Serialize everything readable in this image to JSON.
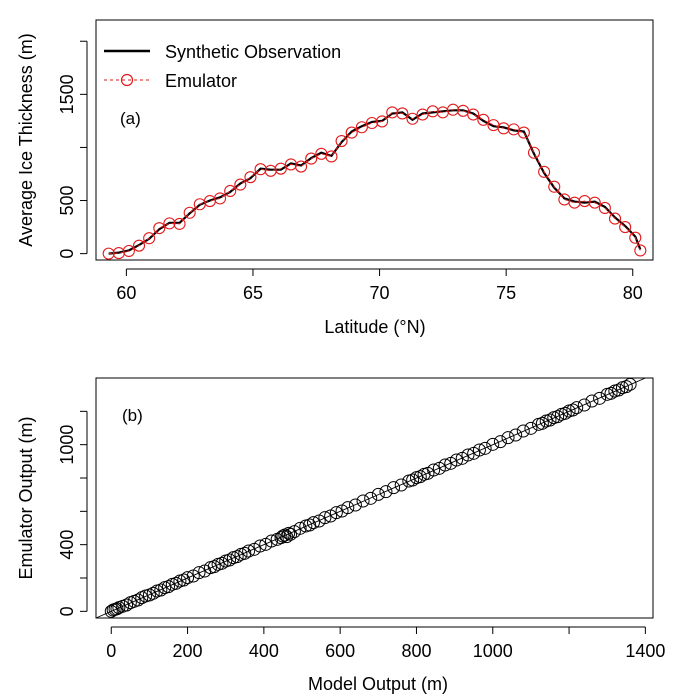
{
  "chart_data": [
    {
      "type": "line",
      "panel_label": "(a)",
      "xlabel": "Latitude (°N)",
      "ylabel": "Average Ice Thickness (m)",
      "xlim": [
        58.8,
        80.8
      ],
      "ylim": [
        -60,
        2200
      ],
      "xticks": [
        60,
        65,
        70,
        75,
        80
      ],
      "yticks": [
        0,
        500,
        1000,
        1500,
        2000
      ],
      "ytick_labels": [
        "0",
        "500",
        "",
        "1500",
        ""
      ],
      "grid": false,
      "legend_position": "top-left",
      "x": [
        59.3,
        59.7,
        60.1,
        60.5,
        60.9,
        61.3,
        61.7,
        62.1,
        62.5,
        62.9,
        63.3,
        63.7,
        64.1,
        64.5,
        64.9,
        65.3,
        65.7,
        66.1,
        66.5,
        66.9,
        67.3,
        67.7,
        68.1,
        68.5,
        68.9,
        69.3,
        69.7,
        70.1,
        70.5,
        70.9,
        71.3,
        71.7,
        72.1,
        72.5,
        72.9,
        73.3,
        73.7,
        74.1,
        74.5,
        74.9,
        75.3,
        75.7,
        76.1,
        76.5,
        76.9,
        77.3,
        77.7,
        78.1,
        78.5,
        78.9,
        79.3,
        79.7,
        80.1,
        80.3
      ],
      "series": [
        {
          "name": "Synthetic Observation",
          "color": "#000000",
          "style": "solid",
          "values": [
            0,
            10,
            30,
            80,
            140,
            230,
            290,
            290,
            380,
            460,
            500,
            530,
            580,
            660,
            710,
            800,
            790,
            790,
            850,
            830,
            900,
            950,
            920,
            1050,
            1150,
            1200,
            1240,
            1250,
            1320,
            1330,
            1260,
            1320,
            1330,
            1340,
            1350,
            1350,
            1320,
            1250,
            1200,
            1190,
            1160,
            1150,
            940,
            760,
            620,
            520,
            490,
            480,
            490,
            440,
            340,
            260,
            160,
            40
          ]
        },
        {
          "name": "Emulator",
          "color": "#e31a1c",
          "style": "dashed",
          "marker": "open-circle",
          "values": [
            0,
            5,
            25,
            75,
            145,
            240,
            285,
            280,
            385,
            465,
            495,
            520,
            590,
            650,
            720,
            795,
            780,
            800,
            840,
            820,
            895,
            940,
            915,
            1060,
            1140,
            1190,
            1230,
            1245,
            1330,
            1320,
            1270,
            1310,
            1340,
            1330,
            1355,
            1345,
            1310,
            1260,
            1210,
            1180,
            1170,
            1140,
            950,
            770,
            630,
            510,
            480,
            495,
            480,
            430,
            330,
            250,
            150,
            30
          ]
        }
      ]
    },
    {
      "type": "scatter",
      "panel_label": "(b)",
      "xlabel": "Model Output (m)",
      "ylabel": "Emulator Output (m)",
      "xlim": [
        -40,
        1420
      ],
      "ylim": [
        -40,
        1400
      ],
      "xticks": [
        0,
        200,
        400,
        600,
        800,
        1000,
        1200,
        1400
      ],
      "xtick_labels": [
        "0",
        "200",
        "400",
        "600",
        "800",
        "1000",
        "",
        "1400"
      ],
      "yticks": [
        0,
        200,
        400,
        600,
        800,
        1000,
        1200
      ],
      "ytick_labels": [
        "0",
        "",
        "400",
        "",
        "",
        "1000",
        ""
      ],
      "grid": false,
      "reference_line": "y = x",
      "marker": "open-circle",
      "color": "#000000",
      "x": [
        0,
        5,
        10,
        15,
        20,
        30,
        40,
        50,
        60,
        70,
        80,
        90,
        100,
        110,
        120,
        130,
        140,
        150,
        160,
        170,
        180,
        190,
        200,
        215,
        230,
        245,
        260,
        270,
        280,
        290,
        300,
        310,
        320,
        330,
        340,
        350,
        360,
        375,
        390,
        405,
        420,
        435,
        445,
        450,
        455,
        460,
        465,
        470,
        480,
        495,
        510,
        520,
        530,
        545,
        560,
        575,
        590,
        605,
        620,
        640,
        660,
        680,
        700,
        720,
        740,
        760,
        780,
        790,
        800,
        810,
        820,
        830,
        845,
        860,
        875,
        890,
        905,
        920,
        935,
        950,
        965,
        980,
        1000,
        1020,
        1040,
        1060,
        1080,
        1100,
        1120,
        1130,
        1140,
        1150,
        1160,
        1170,
        1180,
        1190,
        1200,
        1210,
        1220,
        1240,
        1260,
        1280,
        1300,
        1310,
        1320,
        1330,
        1340,
        1350,
        1360
      ],
      "y": [
        0,
        8,
        12,
        15,
        22,
        30,
        38,
        52,
        60,
        68,
        82,
        92,
        98,
        108,
        122,
        128,
        142,
        148,
        162,
        168,
        182,
        188,
        202,
        212,
        232,
        242,
        262,
        268,
        282,
        288,
        302,
        308,
        322,
        328,
        342,
        348,
        362,
        372,
        392,
        402,
        422,
        432,
        442,
        452,
        458,
        448,
        468,
        462,
        478,
        498,
        512,
        518,
        532,
        542,
        562,
        572,
        592,
        602,
        622,
        638,
        662,
        678,
        702,
        718,
        742,
        758,
        782,
        788,
        802,
        808,
        822,
        828,
        848,
        858,
        878,
        888,
        908,
        918,
        938,
        948,
        968,
        978,
        1002,
        1018,
        1042,
        1058,
        1082,
        1098,
        1122,
        1128,
        1142,
        1148,
        1162,
        1168,
        1182,
        1188,
        1202,
        1208,
        1222,
        1238,
        1262,
        1278,
        1302,
        1308,
        1322,
        1328,
        1342,
        1348,
        1362
      ]
    }
  ]
}
